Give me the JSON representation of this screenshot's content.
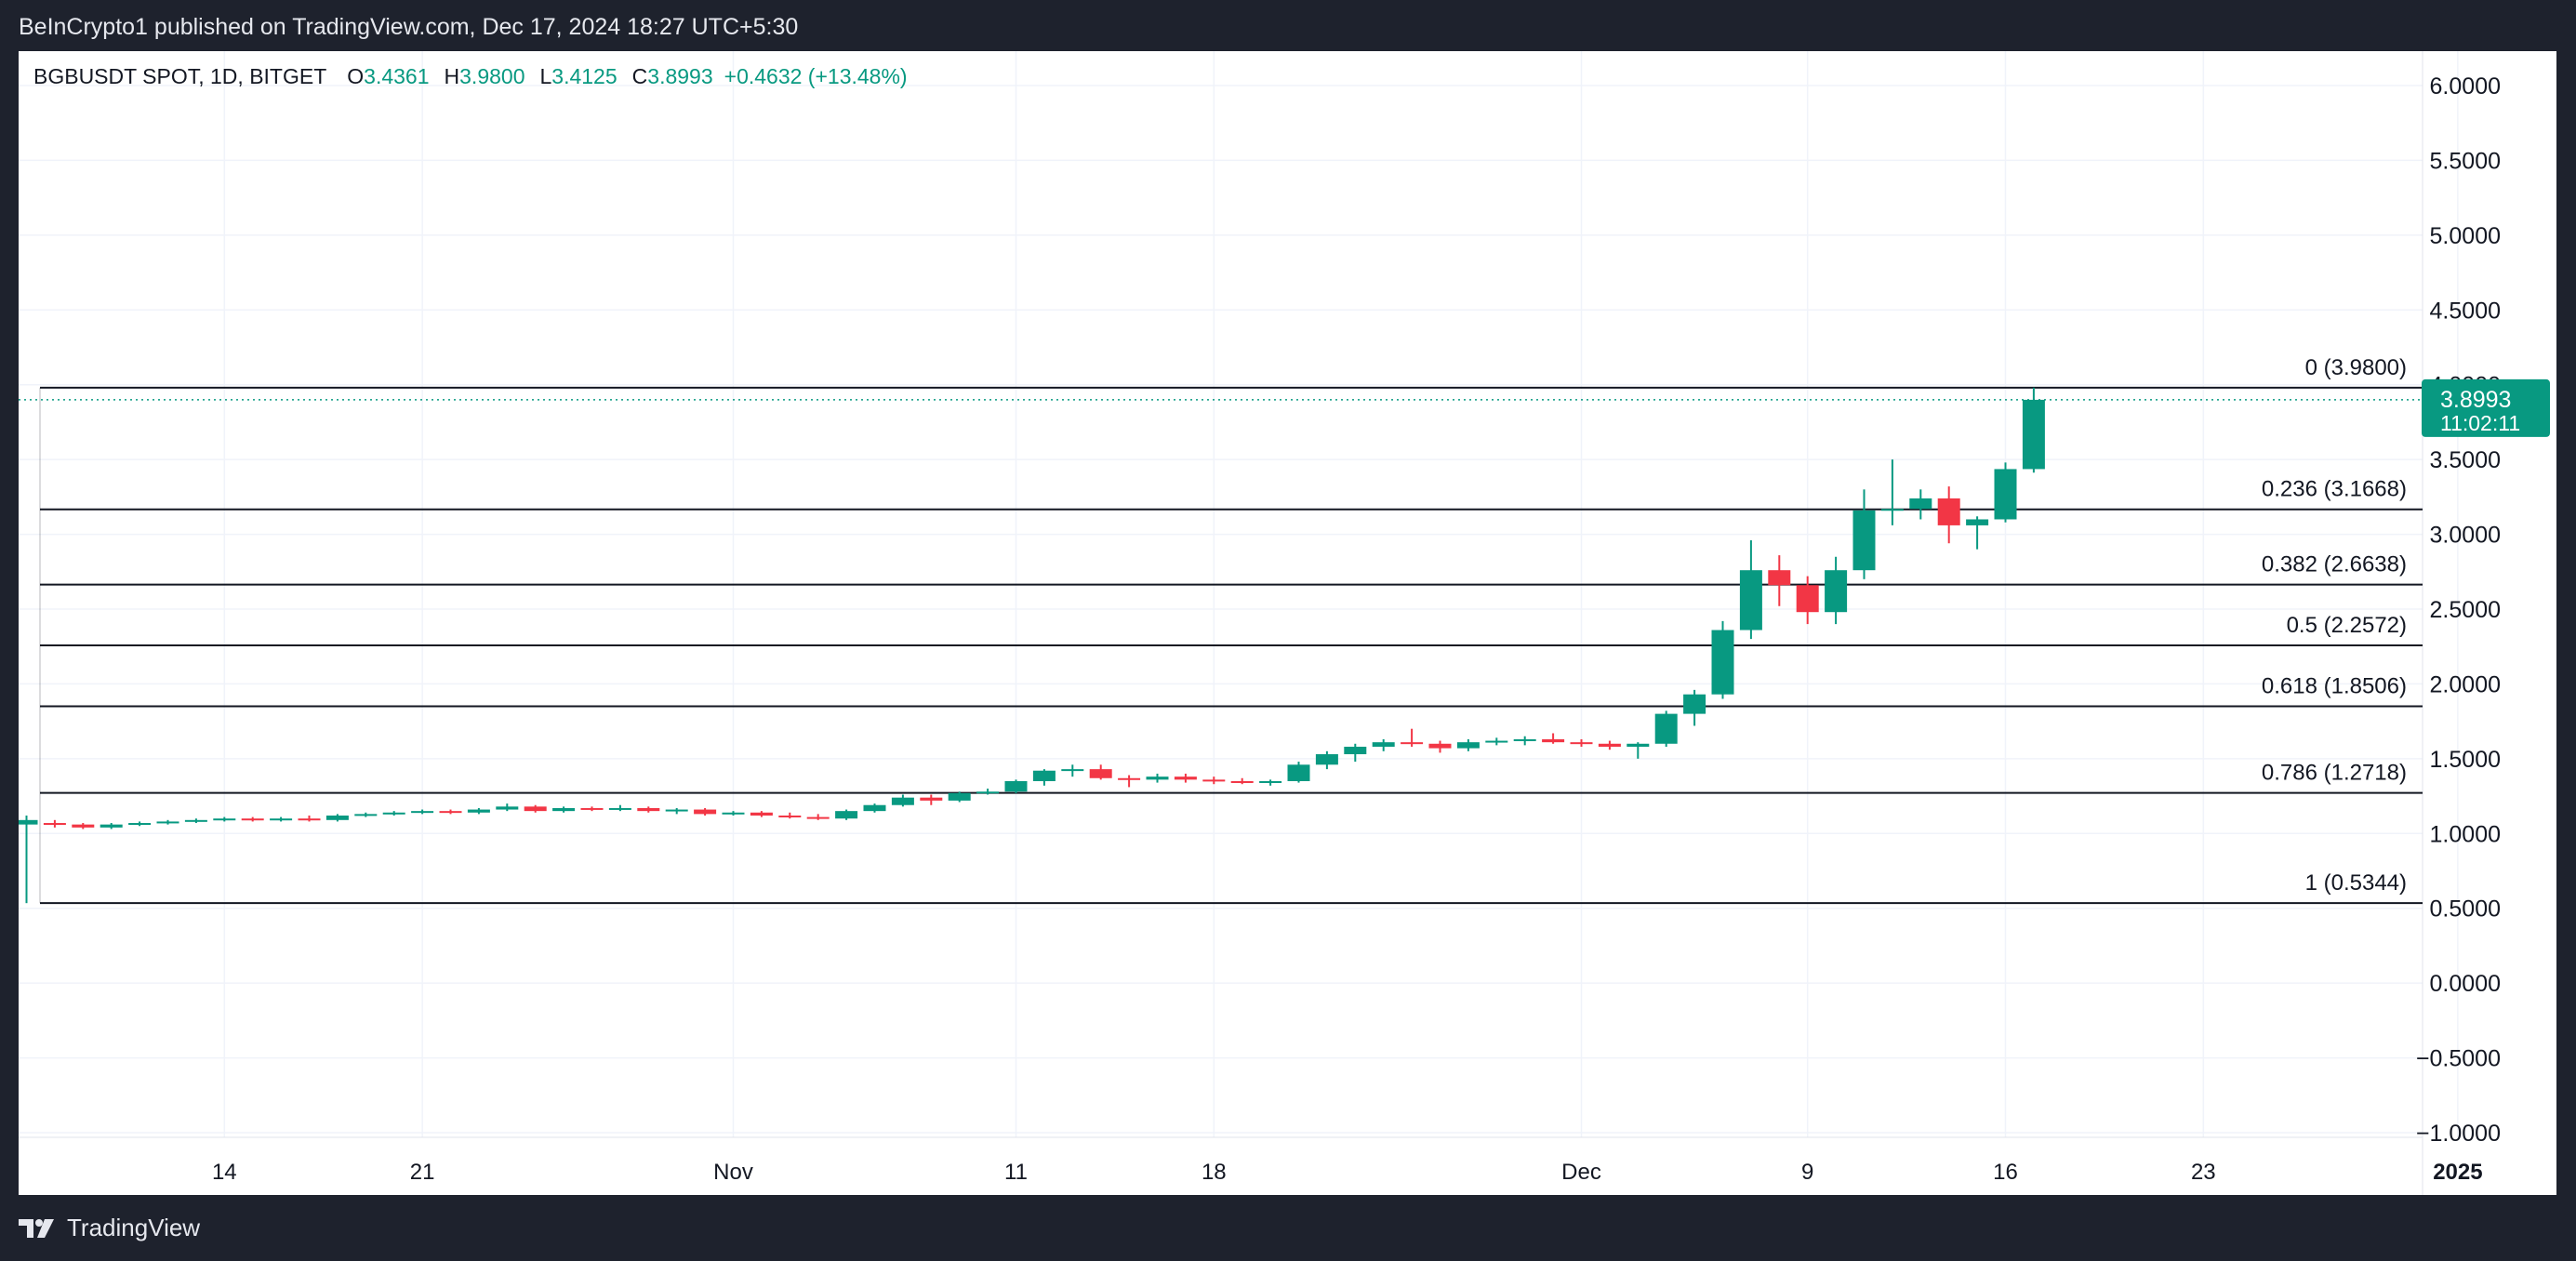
{
  "header": {
    "publisher_text": "BeInCrypto1 published on TradingView.com, Dec 17, 2024 18:27 UTC+5:30"
  },
  "legend": {
    "symbol": "BGBUSDT SPOT, 1D, BITGET",
    "open_key": "O",
    "open": "3.4361",
    "high_key": "H",
    "high": "3.9800",
    "low_key": "L",
    "low": "3.4125",
    "close_key": "C",
    "close": "3.8993",
    "change": "+0.4632 (+13.48%)"
  },
  "price_tag": {
    "price": "3.8993",
    "countdown": "11:02:11",
    "color": "#089981"
  },
  "footer": {
    "brand": "TradingView"
  },
  "colors": {
    "up": "#089981",
    "down": "#f23645",
    "grid": "#f0f3fa",
    "fib_line": "#131722",
    "price_line": "#089981"
  },
  "chart_data": {
    "type": "candlestick",
    "symbol": "BGBUSDT SPOT",
    "interval": "1D",
    "exchange": "BITGET",
    "ylim": [
      -1.0,
      6.2
    ],
    "y_ticks": [
      "6.0000",
      "5.5000",
      "5.0000",
      "4.5000",
      "4.0000",
      "3.5000",
      "3.0000",
      "2.5000",
      "2.0000",
      "1.5000",
      "1.0000",
      "0.5000",
      "0.0000",
      "−0.5000",
      "−1.0000"
    ],
    "x_ticks": [
      "14",
      "21",
      "Nov",
      "11",
      "18",
      "Dec",
      "9",
      "16",
      "23",
      "2025"
    ],
    "x_start": "2024-10-07",
    "x_tick_dates": [
      "2024-10-14",
      "2024-10-21",
      "2024-11-01",
      "2024-11-11",
      "2024-11-18",
      "2024-12-01",
      "2024-12-09",
      "2024-12-16",
      "2024-12-23",
      "2025-01-01"
    ],
    "candles": [
      {
        "date": "2024-10-07",
        "o": 1.06,
        "h": 1.12,
        "l": 0.5344,
        "c": 1.09
      },
      {
        "date": "2024-10-08",
        "o": 1.07,
        "h": 1.09,
        "l": 1.04,
        "c": 1.06
      },
      {
        "date": "2024-10-09",
        "o": 1.06,
        "h": 1.07,
        "l": 1.03,
        "c": 1.04
      },
      {
        "date": "2024-10-10",
        "o": 1.04,
        "h": 1.07,
        "l": 1.03,
        "c": 1.06
      },
      {
        "date": "2024-10-11",
        "o": 1.06,
        "h": 1.08,
        "l": 1.05,
        "c": 1.07
      },
      {
        "date": "2024-10-12",
        "o": 1.07,
        "h": 1.09,
        "l": 1.06,
        "c": 1.08
      },
      {
        "date": "2024-10-13",
        "o": 1.08,
        "h": 1.1,
        "l": 1.07,
        "c": 1.09
      },
      {
        "date": "2024-10-14",
        "o": 1.09,
        "h": 1.11,
        "l": 1.08,
        "c": 1.1
      },
      {
        "date": "2024-10-15",
        "o": 1.1,
        "h": 1.11,
        "l": 1.08,
        "c": 1.09
      },
      {
        "date": "2024-10-16",
        "o": 1.09,
        "h": 1.11,
        "l": 1.08,
        "c": 1.1
      },
      {
        "date": "2024-10-17",
        "o": 1.1,
        "h": 1.12,
        "l": 1.08,
        "c": 1.09
      },
      {
        "date": "2024-10-18",
        "o": 1.09,
        "h": 1.13,
        "l": 1.08,
        "c": 1.12
      },
      {
        "date": "2024-10-19",
        "o": 1.12,
        "h": 1.14,
        "l": 1.11,
        "c": 1.13
      },
      {
        "date": "2024-10-20",
        "o": 1.13,
        "h": 1.15,
        "l": 1.12,
        "c": 1.14
      },
      {
        "date": "2024-10-21",
        "o": 1.14,
        "h": 1.16,
        "l": 1.13,
        "c": 1.15
      },
      {
        "date": "2024-10-22",
        "o": 1.15,
        "h": 1.16,
        "l": 1.13,
        "c": 1.14
      },
      {
        "date": "2024-10-23",
        "o": 1.14,
        "h": 1.17,
        "l": 1.13,
        "c": 1.16
      },
      {
        "date": "2024-10-24",
        "o": 1.16,
        "h": 1.2,
        "l": 1.15,
        "c": 1.18
      },
      {
        "date": "2024-10-25",
        "o": 1.18,
        "h": 1.19,
        "l": 1.14,
        "c": 1.15
      },
      {
        "date": "2024-10-26",
        "o": 1.15,
        "h": 1.18,
        "l": 1.14,
        "c": 1.17
      },
      {
        "date": "2024-10-27",
        "o": 1.17,
        "h": 1.18,
        "l": 1.15,
        "c": 1.16
      },
      {
        "date": "2024-10-28",
        "o": 1.16,
        "h": 1.19,
        "l": 1.15,
        "c": 1.17
      },
      {
        "date": "2024-10-29",
        "o": 1.17,
        "h": 1.18,
        "l": 1.14,
        "c": 1.15
      },
      {
        "date": "2024-10-30",
        "o": 1.15,
        "h": 1.17,
        "l": 1.13,
        "c": 1.16
      },
      {
        "date": "2024-10-31",
        "o": 1.16,
        "h": 1.17,
        "l": 1.12,
        "c": 1.13
      },
      {
        "date": "2024-11-01",
        "o": 1.13,
        "h": 1.15,
        "l": 1.12,
        "c": 1.14
      },
      {
        "date": "2024-11-02",
        "o": 1.14,
        "h": 1.15,
        "l": 1.11,
        "c": 1.12
      },
      {
        "date": "2024-11-03",
        "o": 1.12,
        "h": 1.14,
        "l": 1.1,
        "c": 1.11
      },
      {
        "date": "2024-11-04",
        "o": 1.11,
        "h": 1.13,
        "l": 1.09,
        "c": 1.1
      },
      {
        "date": "2024-11-05",
        "o": 1.1,
        "h": 1.16,
        "l": 1.09,
        "c": 1.15
      },
      {
        "date": "2024-11-06",
        "o": 1.15,
        "h": 1.2,
        "l": 1.14,
        "c": 1.19
      },
      {
        "date": "2024-11-07",
        "o": 1.19,
        "h": 1.26,
        "l": 1.18,
        "c": 1.24
      },
      {
        "date": "2024-11-08",
        "o": 1.24,
        "h": 1.26,
        "l": 1.19,
        "c": 1.22
      },
      {
        "date": "2024-11-09",
        "o": 1.22,
        "h": 1.28,
        "l": 1.21,
        "c": 1.27
      },
      {
        "date": "2024-11-10",
        "o": 1.27,
        "h": 1.3,
        "l": 1.26,
        "c": 1.28
      },
      {
        "date": "2024-11-11",
        "o": 1.28,
        "h": 1.36,
        "l": 1.27,
        "c": 1.35
      },
      {
        "date": "2024-11-12",
        "o": 1.35,
        "h": 1.43,
        "l": 1.32,
        "c": 1.42
      },
      {
        "date": "2024-11-13",
        "o": 1.42,
        "h": 1.46,
        "l": 1.38,
        "c": 1.43
      },
      {
        "date": "2024-11-14",
        "o": 1.43,
        "h": 1.46,
        "l": 1.36,
        "c": 1.37
      },
      {
        "date": "2024-11-15",
        "o": 1.37,
        "h": 1.39,
        "l": 1.31,
        "c": 1.36
      },
      {
        "date": "2024-11-16",
        "o": 1.36,
        "h": 1.4,
        "l": 1.34,
        "c": 1.38
      },
      {
        "date": "2024-11-17",
        "o": 1.38,
        "h": 1.4,
        "l": 1.34,
        "c": 1.36
      },
      {
        "date": "2024-11-18",
        "o": 1.36,
        "h": 1.38,
        "l": 1.33,
        "c": 1.35
      },
      {
        "date": "2024-11-19",
        "o": 1.35,
        "h": 1.37,
        "l": 1.33,
        "c": 1.34
      },
      {
        "date": "2024-11-20",
        "o": 1.34,
        "h": 1.36,
        "l": 1.32,
        "c": 1.35
      },
      {
        "date": "2024-11-21",
        "o": 1.35,
        "h": 1.48,
        "l": 1.34,
        "c": 1.46
      },
      {
        "date": "2024-11-22",
        "o": 1.46,
        "h": 1.55,
        "l": 1.43,
        "c": 1.53
      },
      {
        "date": "2024-11-23",
        "o": 1.53,
        "h": 1.6,
        "l": 1.48,
        "c": 1.58
      },
      {
        "date": "2024-11-24",
        "o": 1.58,
        "h": 1.63,
        "l": 1.55,
        "c": 1.61
      },
      {
        "date": "2024-11-25",
        "o": 1.61,
        "h": 1.7,
        "l": 1.58,
        "c": 1.6
      },
      {
        "date": "2024-11-26",
        "o": 1.6,
        "h": 1.62,
        "l": 1.54,
        "c": 1.57
      },
      {
        "date": "2024-11-27",
        "o": 1.57,
        "h": 1.63,
        "l": 1.55,
        "c": 1.61
      },
      {
        "date": "2024-11-28",
        "o": 1.61,
        "h": 1.64,
        "l": 1.59,
        "c": 1.62
      },
      {
        "date": "2024-11-29",
        "o": 1.62,
        "h": 1.65,
        "l": 1.59,
        "c": 1.63
      },
      {
        "date": "2024-11-30",
        "o": 1.63,
        "h": 1.67,
        "l": 1.6,
        "c": 1.61
      },
      {
        "date": "2024-12-01",
        "o": 1.61,
        "h": 1.63,
        "l": 1.58,
        "c": 1.6
      },
      {
        "date": "2024-12-02",
        "o": 1.6,
        "h": 1.62,
        "l": 1.56,
        "c": 1.58
      },
      {
        "date": "2024-12-03",
        "o": 1.58,
        "h": 1.61,
        "l": 1.5,
        "c": 1.6
      },
      {
        "date": "2024-12-04",
        "o": 1.6,
        "h": 1.82,
        "l": 1.58,
        "c": 1.8
      },
      {
        "date": "2024-12-05",
        "o": 1.8,
        "h": 1.96,
        "l": 1.72,
        "c": 1.93
      },
      {
        "date": "2024-12-06",
        "o": 1.93,
        "h": 2.42,
        "l": 1.9,
        "c": 2.36
      },
      {
        "date": "2024-12-07",
        "o": 2.36,
        "h": 2.96,
        "l": 2.3,
        "c": 2.76
      },
      {
        "date": "2024-12-08",
        "o": 2.76,
        "h": 2.86,
        "l": 2.52,
        "c": 2.66
      },
      {
        "date": "2024-12-09",
        "o": 2.66,
        "h": 2.72,
        "l": 2.4,
        "c": 2.48
      },
      {
        "date": "2024-12-10",
        "o": 2.48,
        "h": 2.85,
        "l": 2.4,
        "c": 2.76
      },
      {
        "date": "2024-12-11",
        "o": 2.76,
        "h": 3.3,
        "l": 2.7,
        "c": 3.16
      },
      {
        "date": "2024-12-12",
        "o": 3.16,
        "h": 3.5,
        "l": 3.06,
        "c": 3.17
      },
      {
        "date": "2024-12-13",
        "o": 3.17,
        "h": 3.3,
        "l": 3.1,
        "c": 3.24
      },
      {
        "date": "2024-12-14",
        "o": 3.24,
        "h": 3.32,
        "l": 2.94,
        "c": 3.06
      },
      {
        "date": "2024-12-15",
        "o": 3.06,
        "h": 3.12,
        "l": 2.9,
        "c": 3.1
      },
      {
        "date": "2024-12-16",
        "o": 3.1,
        "h": 3.48,
        "l": 3.08,
        "c": 3.4361
      },
      {
        "date": "2024-12-17",
        "o": 3.4361,
        "h": 3.98,
        "l": 3.4125,
        "c": 3.8993
      }
    ],
    "fib_levels": [
      {
        "label": "0 (3.9800)",
        "value": 3.98
      },
      {
        "label": "0.236 (3.1668)",
        "value": 3.1668
      },
      {
        "label": "0.382 (2.6638)",
        "value": 2.6638
      },
      {
        "label": "0.5 (2.2572)",
        "value": 2.2572
      },
      {
        "label": "0.618 (1.8506)",
        "value": 1.8506
      },
      {
        "label": "0.786 (1.2718)",
        "value": 1.2718
      },
      {
        "label": "1 (0.5344)",
        "value": 0.5344
      }
    ],
    "current_price": 3.8993,
    "grid": true
  }
}
